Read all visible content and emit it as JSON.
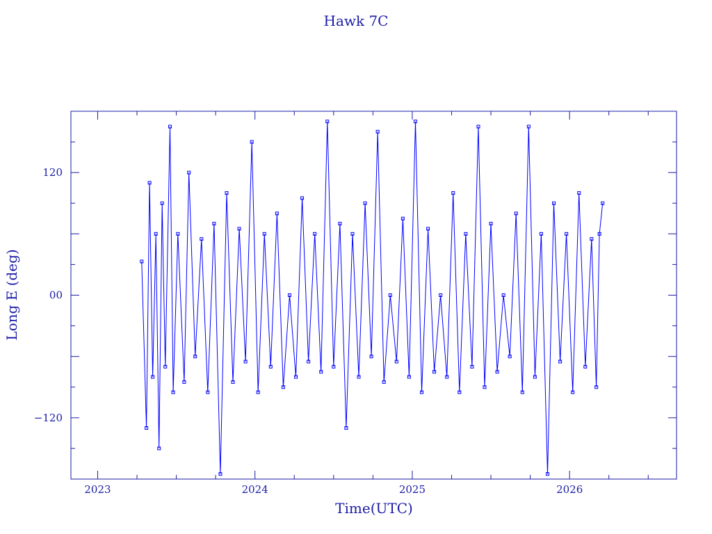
{
  "chart_data": {
    "type": "line",
    "title": "Hawk 7C",
    "xlabel": "Time(UTC)",
    "ylabel": "Long E (deg)",
    "xlim": [
      2022.83,
      2026.68
    ],
    "ylim": [
      -180,
      180
    ],
    "x_ticks": [
      {
        "value": 2023,
        "label": "2023"
      },
      {
        "value": 2024,
        "label": "2024"
      },
      {
        "value": 2025,
        "label": "2025"
      },
      {
        "value": 2026,
        "label": "2026"
      }
    ],
    "y_ticks": [
      {
        "value": 120,
        "label": "120"
      },
      {
        "value": 0,
        "label": "00"
      },
      {
        "value": -120,
        "label": "−120"
      }
    ],
    "grid": false,
    "marker": "square",
    "line_color": "#0000ff",
    "axis_color": "#1a1aa6",
    "series": [
      {
        "x_range": [
          2023.28,
          2026.21
        ],
        "points": [
          [
            2023.28,
            33
          ],
          [
            2023.31,
            -130
          ],
          [
            2023.33,
            110
          ],
          [
            2023.35,
            -80
          ],
          [
            2023.37,
            60
          ],
          [
            2023.39,
            -150
          ],
          [
            2023.41,
            90
          ],
          [
            2023.43,
            -70
          ],
          [
            2023.46,
            165
          ],
          [
            2023.48,
            -95
          ],
          [
            2023.51,
            60
          ],
          [
            2023.55,
            -85
          ],
          [
            2023.58,
            120
          ],
          [
            2023.62,
            -60
          ],
          [
            2023.66,
            55
          ],
          [
            2023.7,
            -95
          ],
          [
            2023.74,
            70
          ],
          [
            2023.78,
            -175
          ],
          [
            2023.82,
            100
          ],
          [
            2023.86,
            -85
          ],
          [
            2023.9,
            65
          ],
          [
            2023.94,
            -65
          ],
          [
            2023.98,
            150
          ],
          [
            2024.02,
            -95
          ],
          [
            2024.06,
            60
          ],
          [
            2024.1,
            -70
          ],
          [
            2024.14,
            80
          ],
          [
            2024.18,
            -90
          ],
          [
            2024.22,
            0
          ],
          [
            2024.26,
            -80
          ],
          [
            2024.3,
            95
          ],
          [
            2024.34,
            -65
          ],
          [
            2024.38,
            60
          ],
          [
            2024.42,
            -75
          ],
          [
            2024.46,
            170
          ],
          [
            2024.5,
            -70
          ],
          [
            2024.54,
            70
          ],
          [
            2024.58,
            -130
          ],
          [
            2024.62,
            60
          ],
          [
            2024.66,
            -80
          ],
          [
            2024.7,
            90
          ],
          [
            2024.74,
            -60
          ],
          [
            2024.78,
            160
          ],
          [
            2024.82,
            -85
          ],
          [
            2024.86,
            0
          ],
          [
            2024.9,
            -65
          ],
          [
            2024.94,
            75
          ],
          [
            2024.98,
            -80
          ],
          [
            2025.02,
            170
          ],
          [
            2025.06,
            -95
          ],
          [
            2025.1,
            65
          ],
          [
            2025.14,
            -75
          ],
          [
            2025.18,
            0
          ],
          [
            2025.22,
            -80
          ],
          [
            2025.26,
            100
          ],
          [
            2025.3,
            -95
          ],
          [
            2025.34,
            60
          ],
          [
            2025.38,
            -70
          ],
          [
            2025.42,
            165
          ],
          [
            2025.46,
            -90
          ],
          [
            2025.5,
            70
          ],
          [
            2025.54,
            -75
          ],
          [
            2025.58,
            0
          ],
          [
            2025.62,
            -60
          ],
          [
            2025.66,
            80
          ],
          [
            2025.7,
            -95
          ],
          [
            2025.74,
            165
          ],
          [
            2025.78,
            -80
          ],
          [
            2025.82,
            60
          ],
          [
            2025.86,
            -175
          ],
          [
            2025.9,
            90
          ],
          [
            2025.94,
            -65
          ],
          [
            2025.98,
            60
          ],
          [
            2026.02,
            -95
          ],
          [
            2026.06,
            100
          ],
          [
            2026.1,
            -70
          ],
          [
            2026.14,
            55
          ],
          [
            2026.17,
            -90
          ],
          [
            2026.19,
            60
          ],
          [
            2026.21,
            90
          ]
        ]
      }
    ]
  }
}
